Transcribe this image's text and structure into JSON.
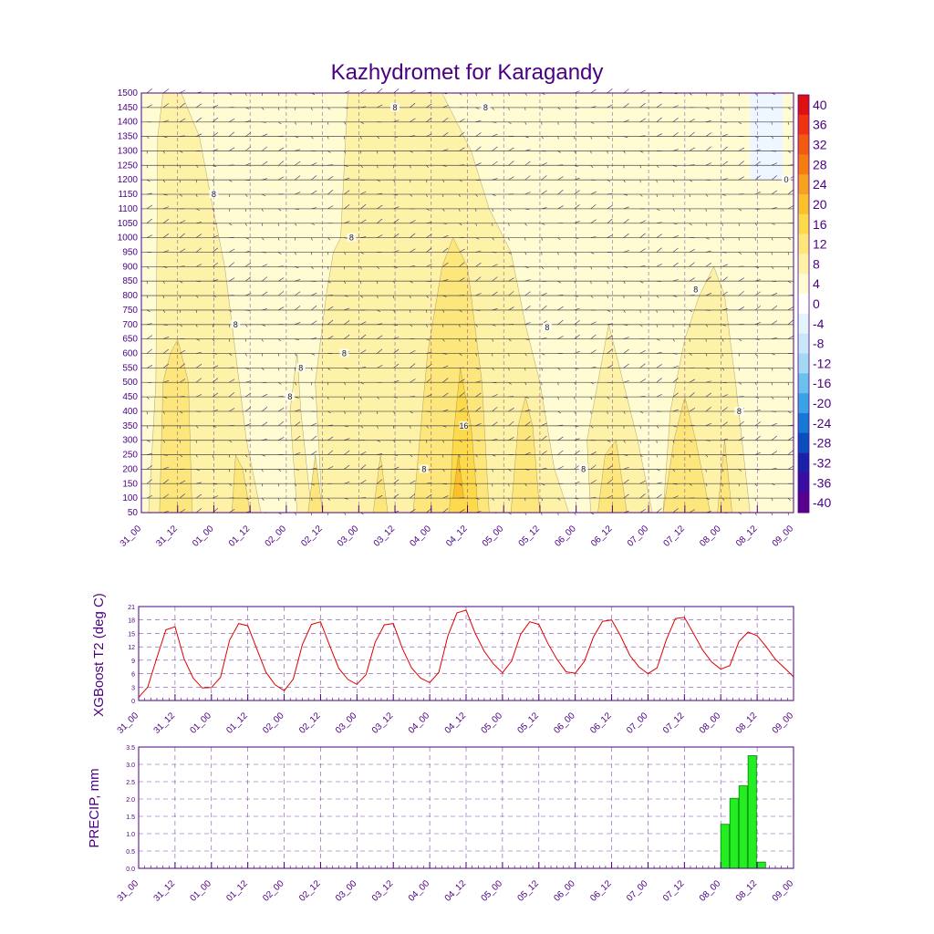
{
  "title": "Kazhydromet for Karagandy",
  "colors": {
    "text": "#4b0082",
    "frame": "#4b0082",
    "t2_line": "#e00000",
    "precip_fill": "#22ee22",
    "precip_edge": "#008800"
  },
  "time_ticks": [
    "31_00",
    "31_12",
    "01_00",
    "01_12",
    "02_00",
    "02_12",
    "03_00",
    "03_12",
    "04_00",
    "04_12",
    "05_00",
    "05_12",
    "06_00",
    "06_12",
    "07_00",
    "07_12",
    "08_00",
    "08_12",
    "09_00"
  ],
  "chart_data": [
    {
      "type": "heatmap",
      "title": "Kazhydromet for Karagandy",
      "y_ticks": [
        50,
        100,
        150,
        200,
        250,
        300,
        350,
        400,
        450,
        500,
        550,
        600,
        650,
        700,
        750,
        800,
        850,
        900,
        950,
        1000,
        1050,
        1100,
        1150,
        1200,
        1250,
        1300,
        1350,
        1400,
        1450,
        1500
      ],
      "ylim": [
        50,
        1500
      ],
      "colorbar": {
        "labels": [
          40,
          36,
          32,
          28,
          24,
          20,
          16,
          12,
          8,
          4,
          0,
          -4,
          -8,
          -12,
          -16,
          -20,
          -24,
          -28,
          -32,
          -36,
          -40
        ],
        "colors": [
          "#dd1111",
          "#ee3311",
          "#f25a10",
          "#f57c10",
          "#f7a120",
          "#fbc02a",
          "#fdd94c",
          "#fde77c",
          "#fef2a8",
          "#fffbd2",
          "#ffffff",
          "#e4f4fb",
          "#c6e8f8",
          "#a3d9f4",
          "#6cc0ee",
          "#3aa3e6",
          "#1478d4",
          "#0b4dbd",
          "#1a20a8",
          "#3a0ca0",
          "#5a008e"
        ]
      },
      "contour_labels": [
        "8",
        "8",
        "8",
        "8",
        "8",
        "8",
        "8",
        "8",
        "8",
        "8",
        "8",
        "8",
        "8",
        "16",
        "0"
      ],
      "grid": true
    },
    {
      "type": "line",
      "ylabel": "XGBoost T2 (deg C)",
      "y_ticks": [
        0,
        3,
        6,
        9,
        12,
        15,
        18,
        21
      ],
      "ylim": [
        0,
        21
      ],
      "x": [
        "31_00",
        "31_03",
        "31_06",
        "31_09",
        "31_12",
        "31_15",
        "31_18",
        "31_21",
        "01_00",
        "01_03",
        "01_06",
        "01_09",
        "01_12",
        "01_15",
        "01_18",
        "01_21",
        "02_00",
        "02_03",
        "02_06",
        "02_09",
        "02_12",
        "02_15",
        "02_18",
        "02_21",
        "03_00",
        "03_03",
        "03_06",
        "03_09",
        "03_12",
        "03_15",
        "03_18",
        "03_21",
        "04_00",
        "04_03",
        "04_06",
        "04_09",
        "04_12",
        "04_15",
        "04_18",
        "04_21",
        "05_00",
        "05_03",
        "05_06",
        "05_09",
        "05_12",
        "05_15",
        "05_18",
        "05_21",
        "06_00",
        "06_03",
        "06_06",
        "06_09",
        "06_12",
        "06_15",
        "06_18",
        "06_21",
        "07_00",
        "07_03",
        "07_06",
        "07_09",
        "07_12",
        "07_15",
        "07_18",
        "07_21",
        "08_00",
        "08_03",
        "08_06",
        "08_09",
        "08_12",
        "08_15",
        "08_18",
        "08_21",
        "09_00"
      ],
      "values": [
        0.7,
        3.0,
        9.5,
        15.8,
        16.5,
        9.3,
        5.0,
        2.8,
        2.9,
        5.2,
        13.5,
        17.2,
        16.7,
        11.5,
        6.3,
        3.5,
        2.2,
        4.8,
        12.5,
        17.0,
        17.6,
        12.3,
        7.2,
        4.7,
        3.6,
        5.8,
        13.0,
        16.9,
        17.2,
        11.6,
        7.3,
        5.0,
        4.0,
        6.3,
        14.5,
        19.6,
        20.2,
        15.0,
        11.0,
        8.2,
        6.2,
        8.8,
        14.8,
        17.6,
        17.0,
        12.7,
        9.2,
        6.4,
        6.1,
        8.7,
        14.2,
        17.7,
        18.0,
        14.4,
        10.1,
        7.5,
        6.0,
        7.3,
        13.5,
        18.3,
        18.6,
        15.0,
        11.3,
        8.6,
        7.0,
        7.8,
        13.2,
        15.3,
        14.5,
        12.0,
        9.2,
        7.3,
        5.3
      ],
      "grid": true
    },
    {
      "type": "bar",
      "ylabel": "PRECIP, mm",
      "y_ticks": [
        "0.0",
        "0.5",
        "1.0",
        "1.5",
        "2.0",
        "2.5",
        "3.0",
        "3.5"
      ],
      "ylim": [
        0,
        3.5
      ],
      "categories": [
        "08_00",
        "08_03",
        "08_06",
        "08_09",
        "08_12"
      ],
      "values": [
        1.27,
        2.02,
        2.38,
        3.25,
        0.18
      ],
      "grid": true
    }
  ]
}
